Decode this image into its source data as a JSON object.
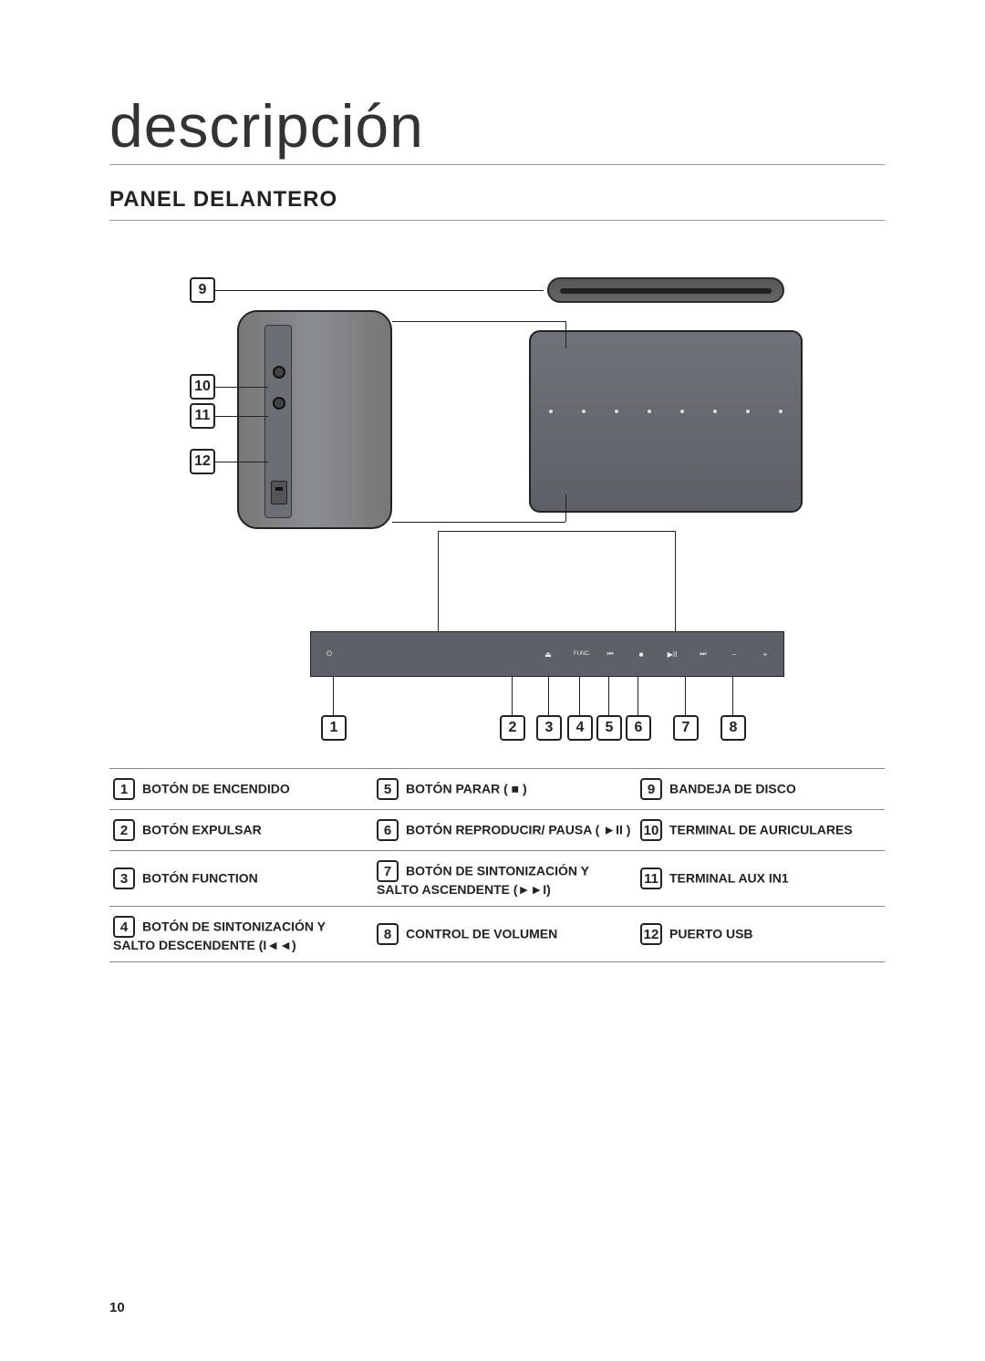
{
  "title": "descripción",
  "subtitle": "PANEL DELANTERO",
  "page_number": "10",
  "callouts": {
    "c1": "1",
    "c2": "2",
    "c3": "3",
    "c4": "4",
    "c5": "5",
    "c6": "6",
    "c7": "7",
    "c8": "8",
    "c9": "9",
    "c10": "10",
    "c11": "11",
    "c12": "12"
  },
  "legend": {
    "rows": [
      {
        "a_num": "1",
        "a_label": "BOTÓN DE ENCENDIDO",
        "b_num": "5",
        "b_label": "BOTÓN PARAR ( ■ )",
        "c_num": "9",
        "c_label": "BANDEJA DE DISCO"
      },
      {
        "a_num": "2",
        "a_label": "BOTÓN EXPULSAR",
        "b_num": "6",
        "b_label": "BOTÓN REPRODUCIR/ PAUSA ( ►II )",
        "c_num": "10",
        "c_label": "TERMINAL DE AURICULARES"
      },
      {
        "a_num": "3",
        "a_label": "BOTÓN FUNCTION",
        "b_num": "7",
        "b_label": "BOTÓN DE SINTONIZACIÓN Y SALTO ASCENDENTE (►►I)",
        "c_num": "11",
        "c_label": "TERMINAL AUX IN1"
      },
      {
        "a_num": "4",
        "a_label": "BOTÓN DE SINTONIZACIÓN Y SALTO DESCENDENTE (I◄◄)",
        "b_num": "8",
        "b_label": "CONTROL DE VOLUMEN",
        "c_num": "12",
        "c_label": "PUERTO USB"
      }
    ]
  },
  "colors": {
    "text": "#222222",
    "rule": "#888888",
    "device_fill": "#6f7278",
    "panel_fill": "#8a8d92",
    "strip_fill": "#5d6066"
  }
}
